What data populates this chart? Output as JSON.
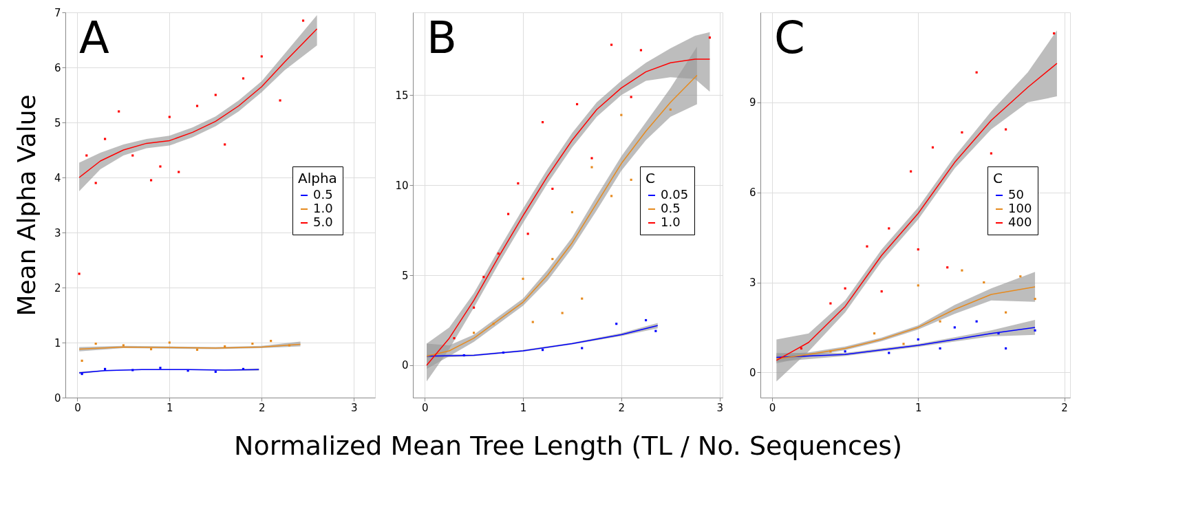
{
  "chart_data": [
    {
      "type": "line",
      "title": "A",
      "ylabel": "Mean Alpha Value",
      "legend_title": "Alpha",
      "legend": "right",
      "grid": true,
      "xlim": [
        -0.13,
        3.23
      ],
      "xticks": [
        0,
        1,
        2,
        3
      ],
      "ylim": [
        0,
        7
      ],
      "yticks": [
        0,
        1,
        2,
        3,
        4,
        5,
        6,
        7
      ],
      "series": [
        {
          "name": "0.5",
          "color": "#0000ff",
          "x": [
            0.02,
            0.3,
            0.7,
            1.2,
            1.6,
            1.97
          ],
          "values": [
            0.45,
            0.49,
            0.51,
            0.51,
            0.5,
            0.51
          ],
          "lower": [
            0.43,
            0.48,
            0.5,
            0.5,
            0.49,
            0.49
          ],
          "upper": [
            0.47,
            0.5,
            0.52,
            0.52,
            0.51,
            0.53
          ]
        },
        {
          "name": "1.0",
          "color": "#e68a1e",
          "x": [
            0.02,
            0.5,
            1.0,
            1.5,
            2.0,
            2.42
          ],
          "values": [
            0.88,
            0.92,
            0.91,
            0.9,
            0.92,
            0.97
          ],
          "lower": [
            0.84,
            0.9,
            0.89,
            0.88,
            0.9,
            0.93
          ],
          "upper": [
            0.92,
            0.94,
            0.93,
            0.92,
            0.94,
            1.02
          ]
        },
        {
          "name": "5.0",
          "color": "#ff0000",
          "x": [
            0.02,
            0.25,
            0.5,
            0.75,
            1.0,
            1.25,
            1.5,
            1.75,
            2.0,
            2.25,
            2.6
          ],
          "values": [
            4.0,
            4.3,
            4.5,
            4.62,
            4.67,
            4.82,
            5.02,
            5.3,
            5.65,
            6.1,
            6.7
          ],
          "lower": [
            3.75,
            4.15,
            4.4,
            4.53,
            4.58,
            4.73,
            4.93,
            5.2,
            5.55,
            5.95,
            6.4
          ],
          "upper": [
            4.27,
            4.45,
            4.6,
            4.7,
            4.76,
            4.91,
            5.11,
            5.4,
            5.75,
            6.25,
            6.95
          ]
        },
        {
          "type": "scatter",
          "color": "#0000ff",
          "x": [
            0.05,
            0.3,
            0.6,
            0.9,
            1.2,
            1.5,
            1.8
          ],
          "values": [
            0.43,
            0.52,
            0.5,
            0.54,
            0.49,
            0.47,
            0.52
          ]
        },
        {
          "type": "scatter",
          "color": "#e68a1e",
          "x": [
            0.05,
            0.2,
            0.5,
            0.8,
            1.0,
            1.3,
            1.6,
            1.9,
            2.1,
            2.3
          ],
          "values": [
            0.67,
            0.98,
            0.95,
            0.88,
            1.0,
            0.87,
            0.93,
            0.98,
            1.03,
            0.95
          ]
        },
        {
          "type": "scatter",
          "color": "#ff0000",
          "x": [
            0.02,
            0.1,
            0.2,
            0.3,
            0.45,
            0.6,
            0.8,
            0.9,
            1.0,
            1.1,
            1.3,
            1.5,
            1.6,
            1.8,
            2.0,
            2.2,
            2.45
          ],
          "values": [
            2.25,
            4.4,
            3.9,
            4.7,
            5.2,
            4.4,
            3.95,
            4.2,
            5.1,
            4.1,
            5.3,
            5.5,
            4.6,
            5.8,
            6.2,
            5.4,
            6.85
          ]
        }
      ]
    },
    {
      "type": "line",
      "title": "B",
      "xlabel": "Normalized Mean Tree Length (TL / No. Sequences)",
      "legend_title": "C",
      "legend": "right",
      "grid": true,
      "xlim": [
        -0.12,
        3.03
      ],
      "xticks": [
        0,
        1,
        2,
        3
      ],
      "ylim": [
        -1.8,
        19.6
      ],
      "yticks": [
        0,
        5,
        10,
        15
      ],
      "series": [
        {
          "name": "0.05",
          "color": "#0000ff",
          "x": [
            0.02,
            0.5,
            1.0,
            1.5,
            2.0,
            2.37
          ],
          "values": [
            0.5,
            0.55,
            0.8,
            1.2,
            1.7,
            2.2
          ],
          "lower": [
            0.4,
            0.5,
            0.75,
            1.15,
            1.62,
            2.05
          ],
          "upper": [
            0.6,
            0.6,
            0.85,
            1.25,
            1.78,
            2.35
          ]
        },
        {
          "name": "0.5",
          "color": "#e68a1e",
          "x": [
            0.02,
            0.25,
            0.5,
            0.75,
            1.0,
            1.25,
            1.5,
            1.75,
            2.0,
            2.25,
            2.5,
            2.77
          ],
          "values": [
            0.5,
            0.8,
            1.5,
            2.5,
            3.5,
            5.0,
            6.8,
            9.0,
            11.2,
            13.0,
            14.6,
            16.1
          ],
          "lower": [
            -0.2,
            0.5,
            1.3,
            2.3,
            3.3,
            4.7,
            6.5,
            8.6,
            10.8,
            12.5,
            13.8,
            14.5
          ],
          "upper": [
            1.2,
            1.1,
            1.7,
            2.7,
            3.7,
            5.3,
            7.1,
            9.4,
            11.6,
            13.5,
            15.4,
            17.7
          ]
        },
        {
          "name": "1.0",
          "color": "#ff0000",
          "x": [
            0.02,
            0.25,
            0.5,
            0.75,
            1.0,
            1.25,
            1.5,
            1.75,
            2.0,
            2.25,
            2.5,
            2.75,
            2.9
          ],
          "values": [
            0.0,
            1.5,
            3.6,
            6.0,
            8.3,
            10.5,
            12.5,
            14.2,
            15.4,
            16.3,
            16.8,
            17.0,
            17.0
          ],
          "lower": [
            -0.9,
            0.9,
            3.2,
            5.6,
            7.9,
            10.1,
            12.1,
            13.8,
            15.0,
            15.8,
            16.0,
            15.9,
            15.2
          ],
          "upper": [
            1.2,
            2.1,
            4.0,
            6.4,
            8.7,
            10.9,
            12.9,
            14.6,
            15.8,
            16.8,
            17.6,
            18.3,
            18.5
          ]
        },
        {
          "type": "scatter",
          "color": "#0000ff",
          "x": [
            0.4,
            0.8,
            1.2,
            1.6,
            1.95,
            2.25,
            2.35
          ],
          "values": [
            0.55,
            0.7,
            0.85,
            0.95,
            2.3,
            2.5,
            1.9
          ]
        },
        {
          "type": "scatter",
          "color": "#e68a1e",
          "x": [
            0.5,
            0.7,
            1.0,
            1.1,
            1.3,
            1.4,
            1.5,
            1.6,
            1.7,
            1.9,
            2.0,
            2.1,
            2.5
          ],
          "values": [
            1.8,
            2.3,
            4.8,
            2.4,
            5.9,
            2.9,
            8.5,
            3.7,
            11.0,
            9.4,
            13.9,
            10.3,
            14.2
          ]
        },
        {
          "type": "scatter",
          "color": "#ff0000",
          "x": [
            0.3,
            0.5,
            0.6,
            0.75,
            0.85,
            0.95,
            1.05,
            1.2,
            1.3,
            1.55,
            1.7,
            1.9,
            2.1,
            2.2,
            2.9
          ],
          "values": [
            1.5,
            3.2,
            4.9,
            6.2,
            8.4,
            10.1,
            7.3,
            13.5,
            9.8,
            14.5,
            11.5,
            17.8,
            14.9,
            17.5,
            18.2
          ]
        }
      ]
    },
    {
      "type": "line",
      "title": "C",
      "legend_title": "C",
      "legend": "right",
      "grid": true,
      "xlim": [
        -0.08,
        2.04
      ],
      "xticks": [
        0,
        1,
        2
      ],
      "ylim": [
        -0.84,
        12.0
      ],
      "yticks": [
        0,
        3,
        6,
        9
      ],
      "series": [
        {
          "name": "50",
          "color": "#0000ff",
          "x": [
            0.03,
            0.5,
            1.0,
            1.25,
            1.5,
            1.8
          ],
          "values": [
            0.5,
            0.6,
            0.9,
            1.1,
            1.3,
            1.5
          ],
          "lower": [
            0.35,
            0.55,
            0.85,
            1.03,
            1.2,
            1.25
          ],
          "upper": [
            0.65,
            0.65,
            0.95,
            1.17,
            1.4,
            1.75
          ]
        },
        {
          "name": "100",
          "color": "#e68a1e",
          "x": [
            0.03,
            0.25,
            0.5,
            0.75,
            1.0,
            1.25,
            1.5,
            1.8
          ],
          "values": [
            0.45,
            0.6,
            0.8,
            1.1,
            1.5,
            2.1,
            2.6,
            2.85
          ],
          "lower": [
            0.3,
            0.53,
            0.74,
            1.04,
            1.43,
            1.95,
            2.4,
            2.35
          ],
          "upper": [
            0.6,
            0.67,
            0.86,
            1.16,
            1.57,
            2.25,
            2.8,
            3.35
          ]
        },
        {
          "name": "400",
          "color": "#ff0000",
          "x": [
            0.03,
            0.25,
            0.5,
            0.75,
            1.0,
            1.25,
            1.5,
            1.75,
            1.95
          ],
          "values": [
            0.4,
            1.0,
            2.2,
            3.9,
            5.3,
            7.0,
            8.4,
            9.5,
            10.3
          ],
          "lower": [
            -0.3,
            0.7,
            2.0,
            3.7,
            5.1,
            6.8,
            8.1,
            9.0,
            9.2
          ],
          "upper": [
            1.1,
            1.3,
            2.4,
            4.1,
            5.5,
            7.2,
            8.7,
            10.0,
            11.4
          ]
        },
        {
          "type": "scatter",
          "color": "#0000ff",
          "x": [
            0.5,
            0.8,
            1.0,
            1.15,
            1.25,
            1.4,
            1.55,
            1.6,
            1.8
          ],
          "values": [
            0.7,
            0.65,
            1.1,
            0.8,
            1.5,
            1.7,
            1.3,
            0.8,
            1.4
          ]
        },
        {
          "type": "scatter",
          "color": "#e68a1e",
          "x": [
            0.4,
            0.7,
            0.9,
            1.0,
            1.15,
            1.3,
            1.45,
            1.6,
            1.7,
            1.8
          ],
          "values": [
            0.7,
            1.3,
            0.95,
            2.9,
            1.7,
            3.4,
            3.0,
            2.0,
            3.2,
            2.45
          ]
        },
        {
          "type": "scatter",
          "color": "#ff0000",
          "x": [
            0.2,
            0.4,
            0.5,
            0.65,
            0.75,
            0.8,
            0.95,
            1.0,
            1.1,
            1.2,
            1.3,
            1.4,
            1.5,
            1.6,
            1.93
          ],
          "values": [
            0.8,
            2.3,
            2.8,
            4.2,
            2.7,
            4.8,
            6.7,
            4.1,
            7.5,
            3.5,
            8.0,
            10.0,
            7.3,
            8.1,
            11.3
          ]
        }
      ]
    }
  ]
}
